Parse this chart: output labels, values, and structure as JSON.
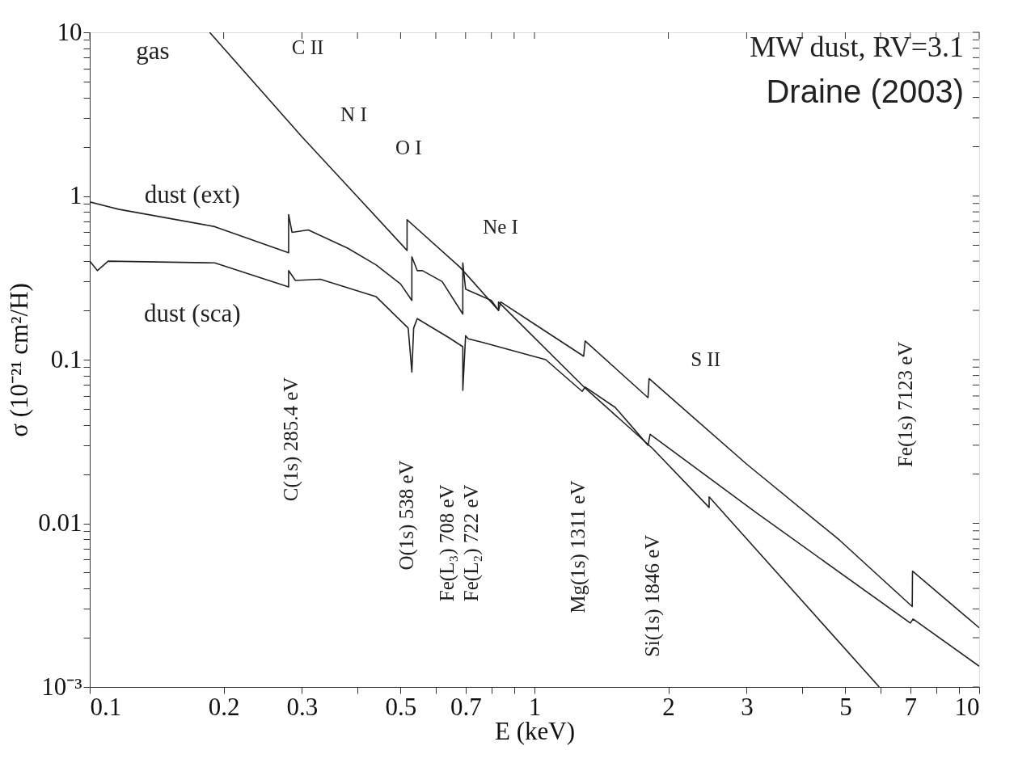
{
  "chart_data": {
    "type": "line",
    "xlabel": "E (keV)",
    "ylabel": "σ (10⁻²¹ cm²/H)",
    "log": "xy",
    "grid": false,
    "legend": false,
    "marker": "none",
    "line_style": "solid",
    "xlim": [
      0.1,
      10
    ],
    "ylim": [
      0.001,
      10
    ],
    "xticks": [
      0.1,
      0.2,
      0.3,
      {
        "value": 0.4,
        "label": null
      },
      0.5,
      {
        "value": 0.6,
        "label": null
      },
      0.7,
      {
        "value": 0.8,
        "label": null
      },
      {
        "value": 0.9,
        "label": null
      },
      1,
      2,
      3,
      {
        "value": 4,
        "label": null
      },
      5,
      {
        "value": 6,
        "label": null
      },
      7,
      {
        "value": 8,
        "label": null
      },
      {
        "value": 9,
        "label": null
      },
      10
    ],
    "yticks": [
      {
        "value": 0.001,
        "label": "10⁻³"
      },
      {
        "value": 0.002,
        "label": null
      },
      {
        "value": 0.003,
        "label": null
      },
      {
        "value": 0.004,
        "label": null
      },
      {
        "value": 0.005,
        "label": null
      },
      {
        "value": 0.006,
        "label": null
      },
      {
        "value": 0.007,
        "label": null
      },
      {
        "value": 0.008,
        "label": null
      },
      {
        "value": 0.009,
        "label": null
      },
      0.01,
      {
        "value": 0.02,
        "label": null
      },
      {
        "value": 0.03,
        "label": null
      },
      {
        "value": 0.04,
        "label": null
      },
      {
        "value": 0.05,
        "label": null
      },
      {
        "value": 0.06,
        "label": null
      },
      {
        "value": 0.07,
        "label": null
      },
      {
        "value": 0.08,
        "label": null
      },
      {
        "value": 0.09,
        "label": null
      },
      0.1,
      {
        "value": 0.2,
        "label": null
      },
      {
        "value": 0.3,
        "label": null
      },
      {
        "value": 0.4,
        "label": null
      },
      {
        "value": 0.5,
        "label": null
      },
      {
        "value": 0.6,
        "label": null
      },
      {
        "value": 0.7,
        "label": null
      },
      {
        "value": 0.8,
        "label": null
      },
      {
        "value": 0.9,
        "label": null
      },
      1,
      {
        "value": 2,
        "label": null
      },
      {
        "value": 3,
        "label": null
      },
      {
        "value": 4,
        "label": null
      },
      {
        "value": 5,
        "label": null
      },
      {
        "value": 6,
        "label": null
      },
      {
        "value": 7,
        "label": null
      },
      {
        "value": 8,
        "label": null
      },
      {
        "value": 9,
        "label": null
      },
      10
    ],
    "series": [
      {
        "name": "gas",
        "color": "#222222",
        "x": [
          0.186,
          0.3,
          0.392,
          0.517,
          0.517,
          0.68,
          0.83,
          0.83,
          1.3,
          1.84,
          2.47,
          2.47,
          5.96
        ],
        "values": [
          10,
          2.3,
          1.05,
          0.465,
          0.716,
          0.367,
          0.2,
          0.225,
          0.067,
          0.0288,
          0.0125,
          0.0145,
          0.001
        ]
      },
      {
        "name": "dust (ext)",
        "color": "#222222",
        "x": [
          0.1,
          0.116,
          0.191,
          0.28,
          0.28,
          0.285,
          0.31,
          0.38,
          0.44,
          0.5,
          0.53,
          0.53,
          0.545,
          0.56,
          0.62,
          0.69,
          0.69,
          0.7,
          0.8,
          0.83,
          0.84,
          1.0,
          1.29,
          1.3,
          1.8,
          1.81,
          3.0,
          4.85,
          7.07,
          7.08,
          10
        ],
        "values": [
          0.92,
          0.83,
          0.65,
          0.45,
          0.77,
          0.6,
          0.62,
          0.48,
          0.38,
          0.29,
          0.23,
          0.425,
          0.35,
          0.35,
          0.3,
          0.19,
          0.39,
          0.27,
          0.23,
          0.2,
          0.225,
          0.165,
          0.105,
          0.13,
          0.0586,
          0.0766,
          0.023,
          0.0079,
          0.0031,
          0.0051,
          0.0023
        ]
      },
      {
        "name": "dust (sca)",
        "color": "#222222",
        "x": [
          0.1,
          0.104,
          0.11,
          0.191,
          0.28,
          0.28,
          0.29,
          0.33,
          0.44,
          0.52,
          0.53,
          0.535,
          0.545,
          0.643,
          0.69,
          0.69,
          0.7,
          0.71,
          0.76,
          1.06,
          1.28,
          1.3,
          1.52,
          1.8,
          1.82,
          3.14,
          7.0,
          7.1,
          10
        ],
        "values": [
          0.4,
          0.35,
          0.4,
          0.39,
          0.278,
          0.35,
          0.305,
          0.31,
          0.243,
          0.156,
          0.084,
          0.156,
          0.178,
          0.136,
          0.12,
          0.065,
          0.14,
          0.134,
          0.128,
          0.1,
          0.064,
          0.068,
          0.051,
          0.03,
          0.035,
          0.0117,
          0.00246,
          0.0026,
          0.00134
        ]
      }
    ],
    "annotations": [
      "MW dust, RV=3.1",
      "Draine (2003)",
      "C II",
      "N I",
      "O I",
      "Ne I",
      "S II",
      "C(1s) 285.4 eV",
      "O(1s) 538 eV",
      "Fe(L₃) 708 eV",
      "Fe(L₂) 722 eV",
      "Mg(1s) 1311 eV",
      "Si(1s) 1846 eV",
      "Fe(1s) 7123 eV"
    ]
  }
}
